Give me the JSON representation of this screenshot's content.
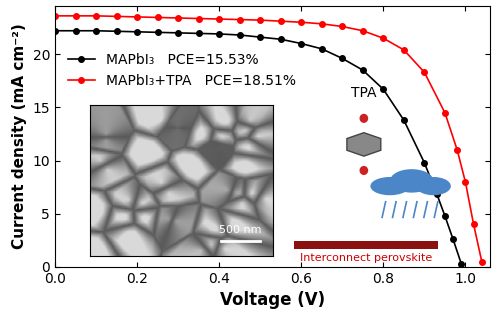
{
  "chart_data": {
    "type": "line",
    "x_label": "Voltage (V)",
    "y_label": "Current density (mA cm⁻²)",
    "xlim": [
      0,
      1.06
    ],
    "ylim": [
      0,
      24.5
    ],
    "xticks": [
      {
        "value": 0,
        "label": "0.0"
      },
      {
        "value": 0.2,
        "label": "0.2"
      },
      {
        "value": 0.4,
        "label": "0.4"
      },
      {
        "value": 0.6,
        "label": "0.6"
      },
      {
        "value": 0.8,
        "label": "0.8"
      },
      {
        "value": 1,
        "label": "1.0"
      }
    ],
    "yticks": [
      0,
      5,
      10,
      15,
      20
    ],
    "legend": "upper left",
    "series": [
      {
        "name": "MAPbI₃   PCE=15.53%",
        "color": "#000000",
        "marker": "o",
        "line_style": "solid",
        "x": [
          0,
          0.05,
          0.1,
          0.15,
          0.2,
          0.25,
          0.3,
          0.35,
          0.4,
          0.45,
          0.5,
          0.55,
          0.6,
          0.65,
          0.7,
          0.75,
          0.8,
          0.85,
          0.9,
          0.93,
          0.95,
          0.97,
          0.99
        ],
        "values": [
          22.2,
          22.2,
          22.2,
          22.15,
          22.1,
          22.05,
          22.0,
          21.95,
          21.9,
          21.8,
          21.6,
          21.4,
          21.0,
          20.5,
          19.6,
          18.5,
          16.7,
          13.8,
          9.8,
          6.9,
          4.8,
          2.6,
          0.3
        ]
      },
      {
        "name": "MAPbI₃+TPA   PCE=18.51%",
        "color": "#ff0000",
        "marker": "o",
        "line_style": "solid",
        "x": [
          0,
          0.05,
          0.1,
          0.15,
          0.2,
          0.25,
          0.3,
          0.35,
          0.4,
          0.45,
          0.5,
          0.55,
          0.6,
          0.65,
          0.7,
          0.75,
          0.8,
          0.85,
          0.9,
          0.95,
          0.98,
          1.0,
          1.02,
          1.04
        ],
        "values": [
          23.6,
          23.6,
          23.6,
          23.55,
          23.5,
          23.45,
          23.4,
          23.35,
          23.3,
          23.25,
          23.2,
          23.1,
          23.0,
          22.85,
          22.6,
          22.2,
          21.5,
          20.4,
          18.3,
          14.5,
          11.0,
          8.0,
          4.0,
          0.5
        ]
      }
    ],
    "annotations": [
      "500 nm",
      "TPA",
      "Interconnect perovskite"
    ]
  }
}
